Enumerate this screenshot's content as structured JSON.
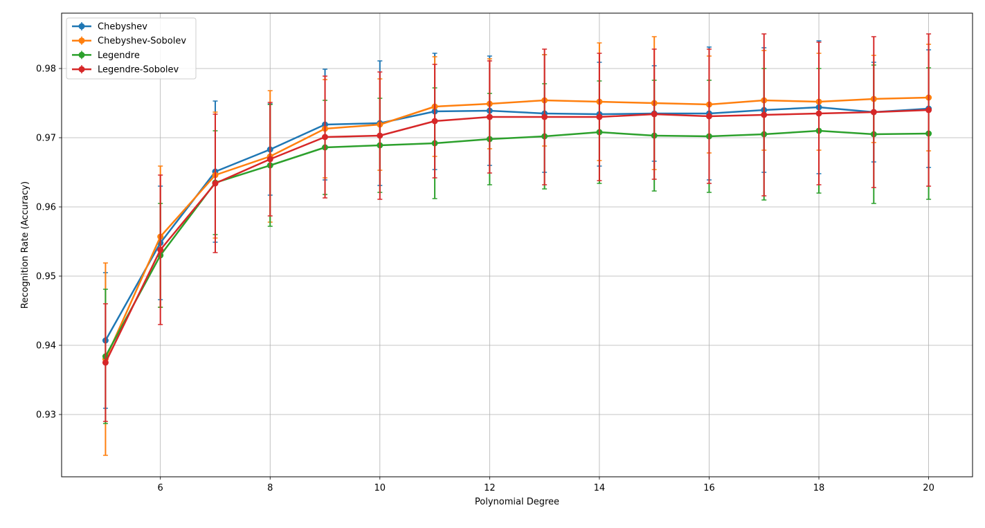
{
  "chart_data": {
    "type": "line",
    "title": "",
    "xlabel": "Polynomial Degree",
    "ylabel": "Recognition Rate (Accuracy)",
    "xlim": [
      4.2,
      20.8
    ],
    "ylim": [
      0.921,
      0.988
    ],
    "xticks": [
      6,
      8,
      10,
      12,
      14,
      16,
      18,
      20
    ],
    "yticks": [
      0.93,
      0.94,
      0.95,
      0.96,
      0.97,
      0.98
    ],
    "xtick_labels": [
      "6",
      "8",
      "10",
      "12",
      "14",
      "16",
      "18",
      "20"
    ],
    "ytick_labels": [
      "0.93",
      "0.94",
      "0.95",
      "0.96",
      "0.97",
      "0.98"
    ],
    "grid": true,
    "legend_position": "top-left",
    "x": [
      5,
      6,
      7,
      8,
      9,
      10,
      11,
      12,
      13,
      14,
      15,
      16,
      17,
      18,
      19,
      20
    ],
    "series": [
      {
        "name": "Chebyshev",
        "color": "#1f77b4",
        "values": [
          0.9407,
          0.9548,
          0.9651,
          0.9683,
          0.9719,
          0.9721,
          0.9738,
          0.9739,
          0.9735,
          0.9734,
          0.9735,
          0.9735,
          0.974,
          0.9744,
          0.9737,
          0.9742
        ],
        "errors": [
          0.0098,
          0.0082,
          0.0102,
          0.0066,
          0.008,
          0.009,
          0.0084,
          0.0079,
          0.0085,
          0.0075,
          0.0069,
          0.0096,
          0.009,
          0.0096,
          0.0072,
          0.0085
        ]
      },
      {
        "name": "Chebyshev-Sobolev",
        "color": "#ff7f0e",
        "values": [
          0.938,
          0.9557,
          0.9646,
          0.9673,
          0.9713,
          0.9719,
          0.9745,
          0.9749,
          0.9754,
          0.9752,
          0.975,
          0.9748,
          0.9754,
          0.9752,
          0.9756,
          0.9758
        ],
        "errors": [
          0.0139,
          0.0102,
          0.0091,
          0.0095,
          0.0071,
          0.0066,
          0.0072,
          0.0065,
          0.0066,
          0.0085,
          0.0096,
          0.007,
          0.0072,
          0.007,
          0.0063,
          0.0077
        ]
      },
      {
        "name": "Legendre",
        "color": "#2ca02c",
        "values": [
          0.9384,
          0.953,
          0.9635,
          0.966,
          0.9686,
          0.9689,
          0.9692,
          0.9698,
          0.9702,
          0.9708,
          0.9703,
          0.9702,
          0.9705,
          0.971,
          0.9705,
          0.9706
        ],
        "errors": [
          0.0097,
          0.0075,
          0.0075,
          0.0088,
          0.0068,
          0.0068,
          0.008,
          0.0066,
          0.0076,
          0.0074,
          0.008,
          0.0081,
          0.0095,
          0.009,
          0.01,
          0.0095
        ]
      },
      {
        "name": "Legendre-Sobolev",
        "color": "#d62728",
        "values": [
          0.9375,
          0.9538,
          0.9634,
          0.9669,
          0.9701,
          0.9703,
          0.9724,
          0.973,
          0.973,
          0.973,
          0.9734,
          0.9731,
          0.9733,
          0.9735,
          0.9737,
          0.974
        ],
        "errors": [
          0.0085,
          0.0108,
          0.01,
          0.0082,
          0.0088,
          0.0092,
          0.0082,
          0.0081,
          0.0098,
          0.0092,
          0.0094,
          0.0097,
          0.0117,
          0.0103,
          0.0109,
          0.011
        ]
      }
    ]
  }
}
